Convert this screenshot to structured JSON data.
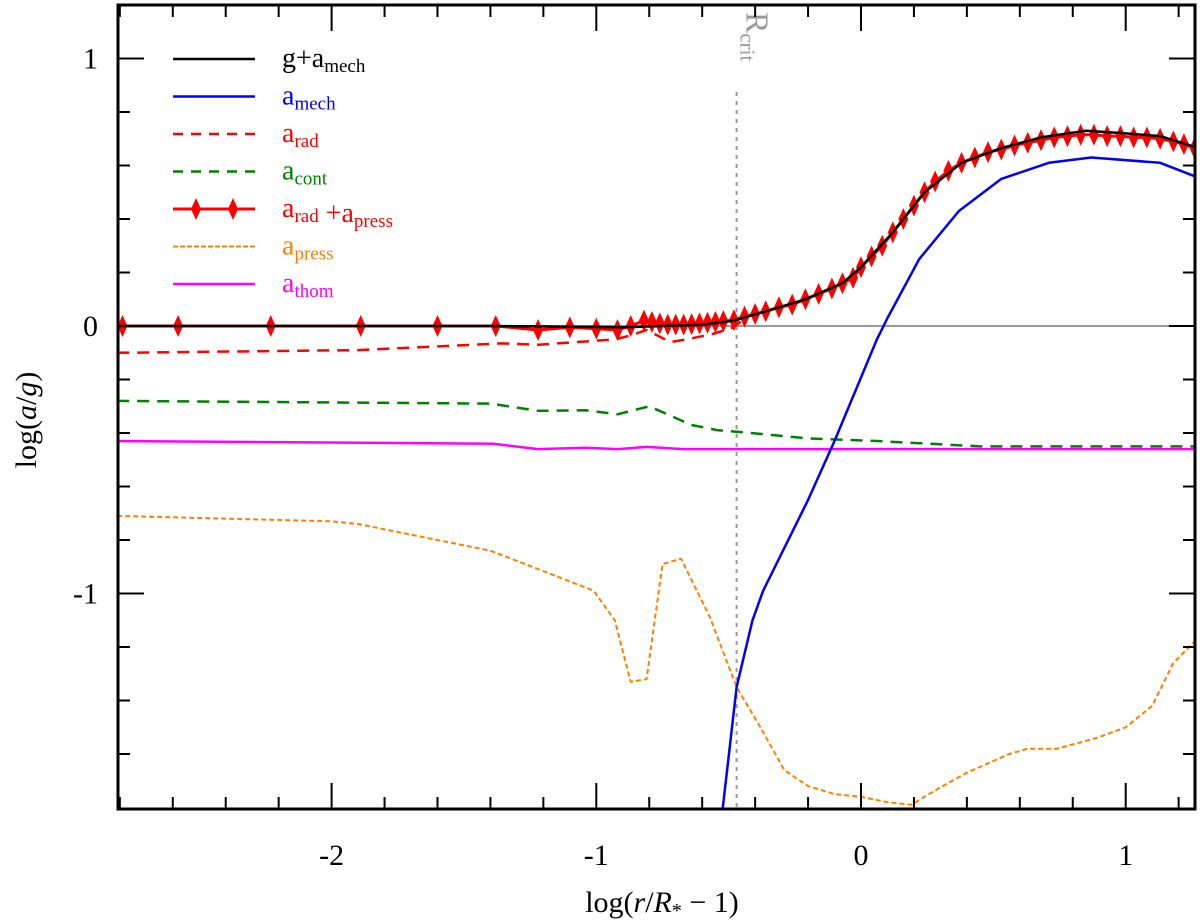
{
  "chart_data": {
    "type": "line",
    "title": "",
    "xlabel": {
      "prefix": "log(",
      "r": "r",
      "slash": "/",
      "R": "R",
      "sub": "*",
      "suffix": " − 1)"
    },
    "ylabel": {
      "prefix": "log(",
      "a": "a",
      "slash": "/",
      "g": "g",
      "suffix": ")"
    },
    "xlim": [
      -2.81,
      1.26
    ],
    "ylim": [
      -2.0,
      1.2
    ],
    "x_ticks": [
      -2,
      -1,
      0,
      1
    ],
    "x_tick_labels": [
      "-2",
      "-1",
      "0",
      "1"
    ],
    "x_minor_step": 0.2,
    "y_ticks": [
      1,
      0,
      -1
    ],
    "y_tick_labels": [
      "1",
      "0",
      "-1"
    ],
    "y_minor_step": 0.2,
    "grid": false,
    "legend_position": "top-left",
    "reference_line": {
      "y": 0,
      "color": "#999999"
    },
    "annotation": {
      "label": "R",
      "sub": "crit",
      "x": -0.47,
      "color": "#999999"
    },
    "series": [
      {
        "name": "g+a_mech",
        "label": [
          [
            "g+a",
            "mech"
          ]
        ],
        "color": "#000000",
        "style": "solid",
        "points": [
          [
            -2.81,
            0
          ],
          [
            -1.4,
            0
          ],
          [
            -0.9,
            -0.005
          ],
          [
            -0.6,
            0.005
          ],
          [
            -0.48,
            0.02
          ],
          [
            -0.36,
            0.055
          ],
          [
            -0.21,
            0.1
          ],
          [
            -0.07,
            0.16
          ],
          [
            0.0,
            0.22
          ],
          [
            0.12,
            0.35
          ],
          [
            0.24,
            0.5
          ],
          [
            0.38,
            0.61
          ],
          [
            0.53,
            0.665
          ],
          [
            0.68,
            0.705
          ],
          [
            0.85,
            0.73
          ],
          [
            1.0,
            0.72
          ],
          [
            1.13,
            0.71
          ],
          [
            1.26,
            0.67
          ]
        ]
      },
      {
        "name": "a_mech",
        "label": [
          [
            "a",
            "mech"
          ]
        ],
        "color": "#0000ff",
        "style": "solid",
        "points": [
          [
            -0.545,
            -2.0
          ],
          [
            -0.47,
            -1.35
          ],
          [
            -0.41,
            -1.1
          ],
          [
            -0.37,
            -0.99
          ],
          [
            -0.2,
            -0.65
          ],
          [
            -0.1,
            -0.43
          ],
          [
            0.06,
            -0.05
          ],
          [
            0.1,
            0.03
          ],
          [
            0.22,
            0.25
          ],
          [
            0.37,
            0.43
          ],
          [
            0.53,
            0.55
          ],
          [
            0.71,
            0.61
          ],
          [
            0.87,
            0.63
          ],
          [
            1.13,
            0.61
          ],
          [
            1.26,
            0.56
          ]
        ]
      },
      {
        "name": "a_rad",
        "label": [
          [
            "a",
            "rad"
          ]
        ],
        "color": "#ff0000",
        "style": "dashed",
        "points": [
          [
            -2.81,
            -0.1
          ],
          [
            -1.9,
            -0.09
          ],
          [
            -1.36,
            -0.065
          ],
          [
            -1.22,
            -0.07
          ],
          [
            -0.93,
            -0.05
          ],
          [
            -0.87,
            -0.035
          ],
          [
            -0.81,
            -0.015
          ],
          [
            -0.72,
            -0.06
          ],
          [
            -0.66,
            -0.05
          ],
          [
            -0.56,
            -0.03
          ],
          [
            -0.48,
            -0.005
          ],
          [
            -0.44,
            0.03
          ]
        ]
      },
      {
        "name": "a_cont",
        "label": [
          [
            "a",
            "cont"
          ]
        ],
        "color": "#008000",
        "style": "dashed",
        "points": [
          [
            -2.81,
            -0.28
          ],
          [
            -1.4,
            -0.29
          ],
          [
            -1.22,
            -0.317
          ],
          [
            -1.04,
            -0.315
          ],
          [
            -0.92,
            -0.33
          ],
          [
            -0.8,
            -0.3
          ],
          [
            -0.64,
            -0.37
          ],
          [
            -0.54,
            -0.39
          ],
          [
            -0.47,
            -0.395
          ],
          [
            -0.2,
            -0.42
          ],
          [
            0.06,
            -0.43
          ],
          [
            0.45,
            -0.45
          ],
          [
            1.26,
            -0.45
          ]
        ]
      },
      {
        "name": "a_rad+a_press",
        "label": [
          [
            "a",
            "rad"
          ],
          [
            " +a",
            "press"
          ]
        ],
        "color": "#ff0000",
        "style": "diamonds",
        "points": [
          [
            -2.79,
            0
          ],
          [
            -2.58,
            0
          ],
          [
            -2.23,
            0
          ],
          [
            -1.89,
            0
          ],
          [
            -1.6,
            0
          ],
          [
            -1.38,
            0
          ],
          [
            -1.22,
            -0.015
          ],
          [
            -1.1,
            -0.005
          ],
          [
            -1.0,
            -0.01
          ],
          [
            -0.92,
            -0.015
          ],
          [
            -0.87,
            0.0
          ],
          [
            -0.82,
            0.02
          ],
          [
            -0.79,
            0.015
          ],
          [
            -0.76,
            0.01
          ],
          [
            -0.73,
            0.005
          ],
          [
            -0.7,
            0.005
          ],
          [
            -0.67,
            0.005
          ],
          [
            -0.64,
            0.007
          ],
          [
            -0.61,
            0.01
          ],
          [
            -0.58,
            0.012
          ],
          [
            -0.55,
            0.015
          ],
          [
            -0.52,
            0.018
          ],
          [
            -0.48,
            0.022
          ],
          [
            -0.44,
            0.035
          ],
          [
            -0.4,
            0.045
          ],
          [
            -0.36,
            0.055
          ],
          [
            -0.31,
            0.07
          ],
          [
            -0.26,
            0.08
          ],
          [
            -0.21,
            0.1
          ],
          [
            -0.16,
            0.12
          ],
          [
            -0.11,
            0.14
          ],
          [
            -0.07,
            0.16
          ],
          [
            -0.03,
            0.18
          ],
          [
            0.0,
            0.22
          ],
          [
            0.04,
            0.26
          ],
          [
            0.08,
            0.3
          ],
          [
            0.12,
            0.35
          ],
          [
            0.16,
            0.4
          ],
          [
            0.2,
            0.45
          ],
          [
            0.24,
            0.5
          ],
          [
            0.28,
            0.54
          ],
          [
            0.33,
            0.58
          ],
          [
            0.38,
            0.61
          ],
          [
            0.43,
            0.63
          ],
          [
            0.48,
            0.65
          ],
          [
            0.53,
            0.66
          ],
          [
            0.58,
            0.675
          ],
          [
            0.63,
            0.685
          ],
          [
            0.68,
            0.695
          ],
          [
            0.73,
            0.705
          ],
          [
            0.78,
            0.71
          ],
          [
            0.83,
            0.715
          ],
          [
            0.88,
            0.715
          ],
          [
            0.93,
            0.71
          ],
          [
            0.98,
            0.71
          ],
          [
            1.03,
            0.705
          ],
          [
            1.08,
            0.705
          ],
          [
            1.13,
            0.7
          ],
          [
            1.18,
            0.69
          ],
          [
            1.22,
            0.68
          ],
          [
            1.26,
            0.665
          ]
        ]
      },
      {
        "name": "a_press",
        "label": [
          [
            "a",
            "press"
          ]
        ],
        "color": "#ff8000",
        "style": "dotted",
        "points": [
          [
            -2.81,
            -0.71
          ],
          [
            -2.0,
            -0.73
          ],
          [
            -1.9,
            -0.74
          ],
          [
            -1.6,
            -0.8
          ],
          [
            -1.4,
            -0.84
          ],
          [
            -1.19,
            -0.92
          ],
          [
            -1.01,
            -0.99
          ],
          [
            -0.93,
            -1.1
          ],
          [
            -0.87,
            -1.33
          ],
          [
            -0.81,
            -1.32
          ],
          [
            -0.75,
            -0.89
          ],
          [
            -0.68,
            -0.87
          ],
          [
            -0.57,
            -1.09
          ],
          [
            -0.47,
            -1.35
          ],
          [
            -0.38,
            -1.5
          ],
          [
            -0.29,
            -1.66
          ],
          [
            -0.2,
            -1.72
          ],
          [
            -0.1,
            -1.75
          ],
          [
            0.0,
            -1.76
          ],
          [
            0.1,
            -1.78
          ],
          [
            0.19,
            -1.79
          ],
          [
            0.29,
            -1.73
          ],
          [
            0.4,
            -1.67
          ],
          [
            0.56,
            -1.6
          ],
          [
            0.63,
            -1.58
          ],
          [
            0.74,
            -1.58
          ],
          [
            0.89,
            -1.54
          ],
          [
            1.0,
            -1.5
          ],
          [
            1.1,
            -1.42
          ],
          [
            1.18,
            -1.26
          ],
          [
            1.26,
            -1.18
          ]
        ]
      },
      {
        "name": "a_thom",
        "label": [
          [
            "a",
            "thom"
          ]
        ],
        "color": "#ff00ff",
        "style": "solid",
        "points": [
          [
            -2.81,
            -0.43
          ],
          [
            -1.39,
            -0.44
          ],
          [
            -1.22,
            -0.46
          ],
          [
            -1.04,
            -0.455
          ],
          [
            -0.92,
            -0.46
          ],
          [
            -0.81,
            -0.452
          ],
          [
            -0.67,
            -0.46
          ],
          [
            1.26,
            -0.46
          ]
        ]
      }
    ]
  }
}
